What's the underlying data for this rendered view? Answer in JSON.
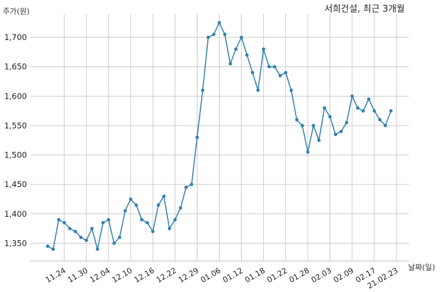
{
  "chart_data": {
    "type": "line",
    "title": "서희건설, 최근 3개월",
    "ylabel": "주가(원)",
    "xlabel": "날짜(일)",
    "ylim": [
      1320,
      1740
    ],
    "yticks": [
      1350,
      1400,
      1450,
      1500,
      1550,
      1600,
      1650,
      1700
    ],
    "ytick_labels": [
      "1,350",
      "1,400",
      "1,450",
      "1,500",
      "1,550",
      "1,600",
      "1,650",
      "1,700"
    ],
    "xtick_labels": [
      "11.24",
      "11.30",
      "12.04",
      "12.10",
      "12.16",
      "12.22",
      "12.29",
      "01.06",
      "01.12",
      "01.18",
      "01.22",
      "01.28",
      "02.03",
      "02.09",
      "02.17",
      "21.02.23"
    ],
    "xtick_index": [
      3,
      7,
      11,
      15,
      19,
      23,
      27,
      31,
      35,
      39,
      43,
      47,
      51,
      55,
      59,
      63
    ],
    "grid": true,
    "color": "#2f7fb0",
    "values": [
      1345,
      1340,
      1390,
      1385,
      1375,
      1370,
      1360,
      1355,
      1375,
      1340,
      1385,
      1390,
      1350,
      1360,
      1405,
      1425,
      1415,
      1390,
      1385,
      1370,
      1415,
      1430,
      1375,
      1390,
      1410,
      1445,
      1450,
      1530,
      1610,
      1700,
      1705,
      1725,
      1705,
      1655,
      1680,
      1700,
      1670,
      1640,
      1610,
      1680,
      1650,
      1650,
      1635,
      1640,
      1610,
      1560,
      1550,
      1505,
      1550,
      1525,
      1580,
      1565,
      1535,
      1540,
      1555,
      1600,
      1580,
      1575,
      1595,
      1575,
      1560,
      1550,
      1575
    ]
  }
}
